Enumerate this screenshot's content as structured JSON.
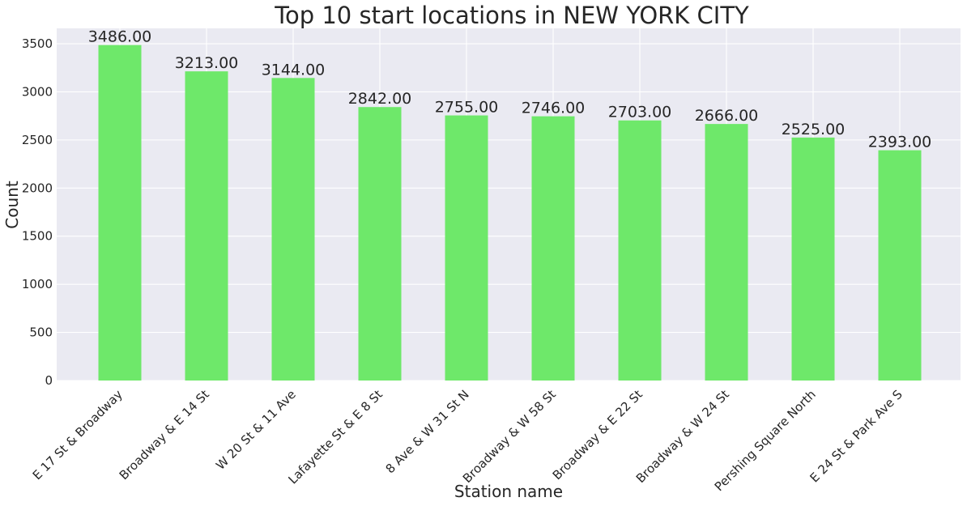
{
  "chart_data": {
    "type": "bar",
    "title": "Top 10 start locations in NEW YORK CITY",
    "xlabel": "Station name",
    "ylabel": "Count",
    "categories": [
      "E 17 St & Broadway",
      "Broadway & E 14 St",
      "W 20 St & 11 Ave",
      "Lafayette St & E 8 St",
      "8 Ave & W 31 St N",
      "Broadway & W 58 St",
      "Broadway & E 22 St",
      "Broadway & W 24 St",
      "Pershing Square North",
      "E 24 St & Park Ave S"
    ],
    "values": [
      3486,
      3213,
      3144,
      2842,
      2755,
      2746,
      2703,
      2666,
      2525,
      2393
    ],
    "data_labels": [
      "3486.00",
      "3213.00",
      "3144.00",
      "2842.00",
      "2755.00",
      "2746.00",
      "2703.00",
      "2666.00",
      "2525.00",
      "2393.00"
    ],
    "ylim": [
      0,
      3660
    ],
    "yticks": [
      0,
      500,
      1000,
      1500,
      2000,
      2500,
      3000,
      3500
    ],
    "grid": true,
    "colors": {
      "bar": "#6ee86a",
      "plot_background": "#eaeaf2",
      "grid": "#ffffff",
      "text": "#262626"
    }
  }
}
